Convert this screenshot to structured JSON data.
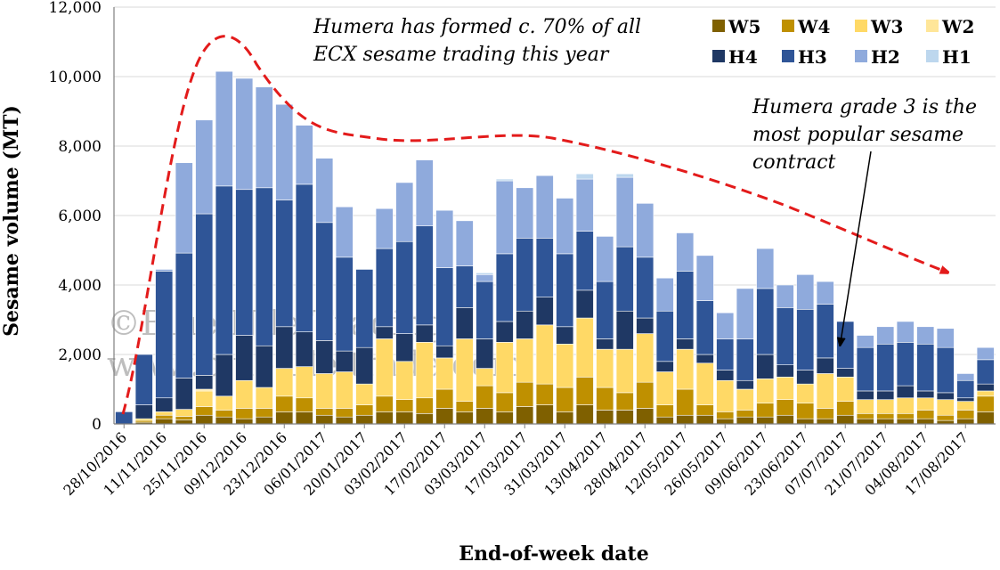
{
  "chart_data": {
    "type": "bar",
    "stacked": true,
    "title": "",
    "xlabel": "End-of-week date",
    "ylabel": "Sesame volume (MT)",
    "ylim": [
      0,
      12000
    ],
    "yticks": [
      "0",
      "2,000",
      "4,000",
      "6,000",
      "8,000",
      "10,000",
      "12,000"
    ],
    "grid": true,
    "legend_position": "top-right",
    "x_tick_labels": [
      "28/10/2016",
      "11/11/2016",
      "25/11/2016",
      "09/12/2016",
      "23/12/2016",
      "06/01/2017",
      "20/01/2017",
      "03/02/2017",
      "17/02/2017",
      "03/03/2017",
      "17/03/2017",
      "31/03/2017",
      "13/04/2017",
      "28/04/2017",
      "12/05/2017",
      "26/05/2017",
      "09/06/2017",
      "23/06/2017",
      "07/07/2017",
      "21/07/2017",
      "04/08/2017",
      "17/08/2017"
    ],
    "categories": [
      "28/10/2016",
      "04/11/2016",
      "11/11/2016",
      "18/11/2016",
      "25/11/2016",
      "02/12/2016",
      "09/12/2016",
      "16/12/2016",
      "23/12/2016",
      "30/12/2016",
      "06/01/2017",
      "13/01/2017",
      "20/01/2017",
      "27/01/2017",
      "03/02/2017",
      "10/02/2017",
      "17/02/2017",
      "24/02/2017",
      "03/03/2017",
      "10/03/2017",
      "17/03/2017",
      "24/03/2017",
      "31/03/2017",
      "07/04/2017",
      "13/04/2017",
      "21/04/2017",
      "28/04/2017",
      "05/05/2017",
      "12/05/2017",
      "19/05/2017",
      "26/05/2017",
      "02/06/2017",
      "09/06/2017",
      "16/06/2017",
      "23/06/2017",
      "30/06/2017",
      "07/07/2017",
      "14/07/2017",
      "21/07/2017",
      "28/07/2017",
      "04/08/2017",
      "11/08/2017",
      "17/08/2017",
      "25/08/2017"
    ],
    "series": [
      {
        "name": "W5",
        "color": "#7F6000",
        "values": [
          0,
          50,
          150,
          120,
          250,
          200,
          150,
          200,
          350,
          350,
          250,
          200,
          250,
          350,
          350,
          300,
          450,
          350,
          450,
          350,
          500,
          550,
          350,
          550,
          400,
          400,
          450,
          200,
          250,
          250,
          150,
          200,
          200,
          250,
          150,
          150,
          250,
          150,
          150,
          150,
          150,
          100,
          150,
          350
        ]
      },
      {
        "name": "W4",
        "color": "#BF9000",
        "values": [
          0,
          50,
          100,
          100,
          250,
          200,
          300,
          250,
          450,
          400,
          200,
          250,
          300,
          450,
          350,
          450,
          550,
          300,
          650,
          550,
          700,
          600,
          700,
          800,
          650,
          500,
          750,
          350,
          750,
          300,
          200,
          200,
          400,
          450,
          450,
          300,
          400,
          150,
          150,
          150,
          250,
          150,
          250,
          450
        ]
      },
      {
        "name": "W3",
        "color": "#FFD966",
        "values": [
          0,
          50,
          100,
          200,
          450,
          400,
          800,
          600,
          800,
          900,
          1000,
          1050,
          600,
          1650,
          1100,
          1600,
          900,
          1800,
          500,
          1450,
          1250,
          1700,
          1250,
          1700,
          1100,
          1250,
          1400,
          950,
          1150,
          1200,
          900,
          600,
          700,
          650,
          550,
          1000,
          700,
          400,
          400,
          450,
          350,
          450,
          250,
          150
        ]
      },
      {
        "name": "W2",
        "color": "#FFE699",
        "values": [
          0,
          0,
          0,
          0,
          50,
          0,
          0,
          0,
          0,
          0,
          0,
          0,
          0,
          0,
          0,
          0,
          0,
          0,
          0,
          0,
          0,
          0,
          0,
          0,
          0,
          0,
          0,
          0,
          0,
          0,
          0,
          0,
          0,
          0,
          0,
          0,
          0,
          0,
          0,
          0,
          0,
          0,
          0,
          0
        ]
      },
      {
        "name": "H4",
        "color": "#1F3864",
        "values": [
          0,
          400,
          400,
          900,
          400,
          1200,
          1300,
          1200,
          1200,
          1000,
          950,
          600,
          1050,
          350,
          800,
          500,
          350,
          900,
          850,
          600,
          800,
          800,
          500,
          800,
          300,
          1100,
          450,
          300,
          300,
          250,
          300,
          250,
          700,
          350,
          400,
          450,
          250,
          250,
          250,
          350,
          200,
          200,
          100,
          200
        ]
      },
      {
        "name": "H3",
        "color": "#2F5597",
        "values": [
          350,
          1450,
          3650,
          3600,
          4650,
          4850,
          4200,
          4550,
          3650,
          4250,
          3400,
          2700,
          2250,
          2250,
          2650,
          2850,
          2250,
          1200,
          1650,
          1950,
          2100,
          1700,
          2100,
          1700,
          1650,
          1850,
          1750,
          1450,
          1950,
          1550,
          900,
          1200,
          1900,
          1650,
          1750,
          1550,
          1350,
          1250,
          1350,
          1250,
          1350,
          1300,
          500,
          700
        ]
      },
      {
        "name": "H2",
        "color": "#8FAADC",
        "values": [
          0,
          0,
          50,
          2600,
          2700,
          3300,
          3200,
          2900,
          2750,
          1700,
          1850,
          1450,
          0,
          1150,
          1700,
          1900,
          1650,
          1300,
          200,
          2100,
          1450,
          1800,
          1600,
          1500,
          1300,
          2000,
          1550,
          950,
          1100,
          1300,
          750,
          1450,
          1150,
          650,
          1000,
          650,
          0,
          350,
          500,
          600,
          500,
          550,
          200,
          350
        ]
      },
      {
        "name": "H1",
        "color": "#BDD7EE",
        "values": [
          0,
          0,
          0,
          0,
          0,
          0,
          0,
          0,
          0,
          0,
          0,
          0,
          0,
          0,
          0,
          0,
          0,
          0,
          50,
          50,
          0,
          0,
          0,
          150,
          0,
          100,
          0,
          0,
          0,
          0,
          0,
          0,
          0,
          0,
          0,
          0,
          0,
          0,
          0,
          0,
          0,
          0,
          0,
          0
        ]
      }
    ],
    "legend_order": [
      "W5",
      "W4",
      "W3",
      "W2",
      "H4",
      "H3",
      "H2",
      "H1"
    ],
    "annotations": [
      {
        "id": "top",
        "lines": [
          "Humera has formed c. 70% of all",
          "ECX sesame trading this year"
        ]
      },
      {
        "id": "right",
        "lines": [
          "Humera grade 3 is the",
          "most popular sesame",
          "contract"
        ]
      }
    ],
    "trend_line": {
      "style": "dashed",
      "color": "#E31B1B",
      "arrow": true
    },
    "watermark": [
      "©Blue Nile Trading",
      "www.bluenile trade.com"
    ]
  }
}
